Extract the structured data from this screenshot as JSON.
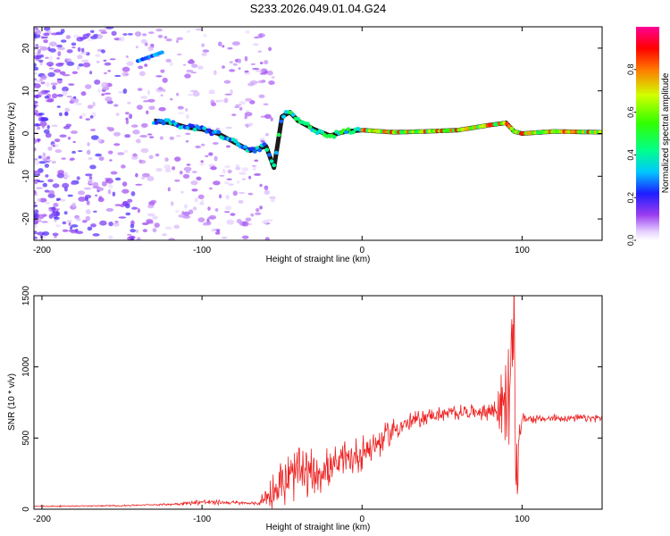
{
  "title": "S233.2026.049.01.04.G24",
  "chart_data": [
    {
      "type": "heatmap",
      "panel": "top",
      "title": "S233.2026.049.01.04.G24",
      "xlabel": "Height of straight line (km)",
      "ylabel": "Frequency (Hz)",
      "xlim": [
        -205,
        150
      ],
      "ylim": [
        -25,
        25
      ],
      "xticks": [
        -200,
        -100,
        0,
        100
      ],
      "xtick_labels": [
        "-200",
        "-100",
        "0",
        "100"
      ],
      "yticks": [
        -20,
        -10,
        0,
        10,
        20
      ],
      "ytick_labels": [
        "-20",
        "-10",
        "0",
        "10",
        "20"
      ],
      "colorbar": {
        "label": "Normalized spectral amplitude",
        "range": [
          0,
          1
        ],
        "ticks": [
          0.0,
          0.2,
          0.4,
          0.6,
          0.8
        ],
        "tick_labels": [
          "0.0",
          "0.2",
          "0.4",
          "0.6",
          "0.8"
        ],
        "colormap": "rainbow (white-purple-blue-cyan-green-yellow-red-magenta)"
      },
      "ridge": {
        "description": "dominant frequency track vs height",
        "x": [
          -130,
          -120,
          -110,
          -100,
          -90,
          -80,
          -70,
          -60,
          -55,
          -50,
          -45,
          -40,
          -30,
          -20,
          -10,
          0,
          20,
          40,
          60,
          80,
          90,
          95,
          100,
          120,
          150
        ],
        "y": [
          3,
          2.5,
          1.5,
          1,
          0,
          -2,
          -4,
          -3,
          -8,
          4,
          5,
          3,
          1,
          -0.5,
          0.5,
          0.8,
          0.3,
          0.5,
          0.8,
          2,
          2.5,
          0.5,
          0,
          0.5,
          0.3
        ]
      },
      "secondary_feature": {
        "x": [
          -140,
          -125
        ],
        "y": [
          17,
          19
        ]
      },
      "colors": {
        "ridge_core": "#ff0000",
        "noise": "#8a2be2"
      }
    },
    {
      "type": "line",
      "panel": "bottom",
      "xlabel": "Height of straight line (km)",
      "ylabel": "SNR (10 * v/v)",
      "xlim": [
        -205,
        150
      ],
      "ylim": [
        0,
        1500
      ],
      "xticks": [
        -200,
        -100,
        0,
        100
      ],
      "xtick_labels": [
        "-200",
        "-100",
        "0",
        "100"
      ],
      "yticks": [
        0,
        500,
        1000,
        1500
      ],
      "ytick_labels": [
        "0",
        "500",
        "1000",
        "1500"
      ],
      "series": [
        {
          "name": "SNR",
          "color": "#ee2222",
          "envelope_x": [
            -205,
            -150,
            -120,
            -100,
            -80,
            -65,
            -60,
            -50,
            -40,
            -30,
            -20,
            -10,
            0,
            10,
            20,
            30,
            40,
            50,
            60,
            70,
            80,
            85,
            90,
            92,
            94,
            95,
            96,
            97,
            98,
            100,
            110,
            120,
            130,
            150
          ],
          "envelope_y": [
            20,
            25,
            35,
            50,
            45,
            40,
            80,
            180,
            250,
            260,
            290,
            330,
            400,
            460,
            560,
            610,
            650,
            670,
            680,
            685,
            690,
            700,
            750,
            850,
            1000,
            1500,
            300,
            150,
            500,
            640,
            630,
            640,
            640,
            640
          ],
          "noise_amplitude_y": [
            5,
            5,
            8,
            20,
            15,
            10,
            100,
            200,
            180,
            180,
            160,
            150,
            130,
            120,
            90,
            70,
            60,
            60,
            55,
            55,
            90,
            200,
            300,
            400,
            400,
            200,
            250,
            300,
            100,
            40,
            30,
            30,
            30,
            30
          ]
        }
      ]
    }
  ]
}
